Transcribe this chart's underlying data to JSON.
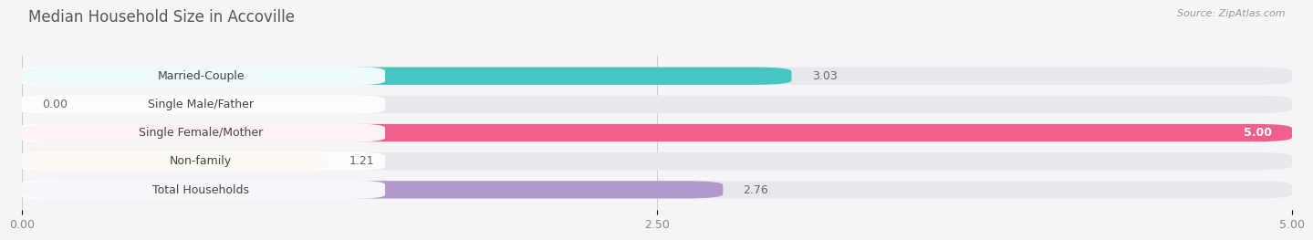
{
  "title": "Median Household Size in Accoville",
  "source": "Source: ZipAtlas.com",
  "categories": [
    "Married-Couple",
    "Single Male/Father",
    "Single Female/Mother",
    "Non-family",
    "Total Households"
  ],
  "values": [
    3.03,
    0.0,
    5.0,
    1.21,
    2.76
  ],
  "bar_colors": [
    "#47c4c4",
    "#a0b0e8",
    "#f0608a",
    "#f5c07a",
    "#b09acc"
  ],
  "track_color": "#e8e8ec",
  "xlim": [
    0,
    5.0
  ],
  "xticks": [
    0.0,
    2.5,
    5.0
  ],
  "xticklabels": [
    "0.00",
    "2.50",
    "5.00"
  ],
  "background_color": "#f5f5f7",
  "bar_height": 0.62,
  "title_fontsize": 12,
  "label_fontsize": 9,
  "value_fontsize": 9,
  "tick_fontsize": 9,
  "source_fontsize": 8
}
